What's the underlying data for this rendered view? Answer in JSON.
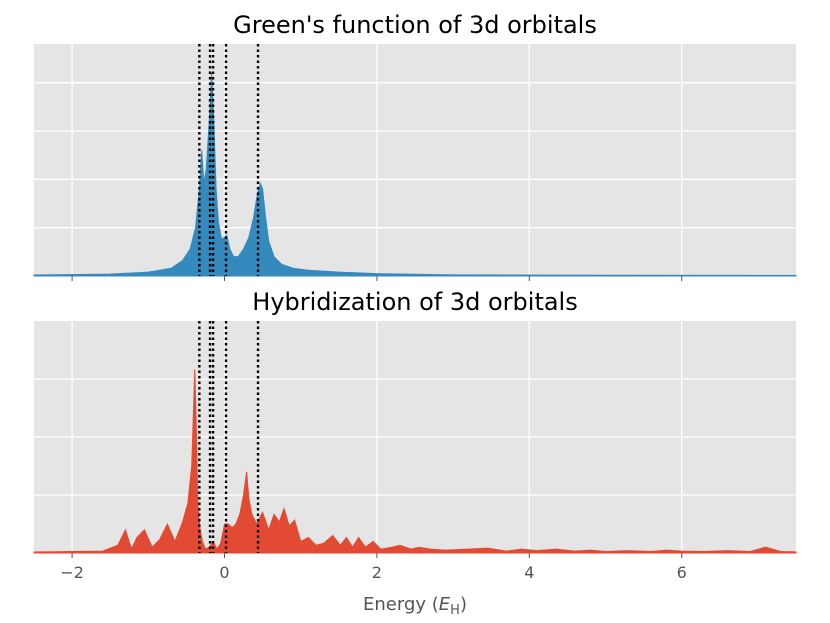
{
  "chart_data": [
    {
      "type": "area",
      "title": "Green's function of 3d orbitals",
      "xlabel": "",
      "ylabel": "",
      "xlim": [
        -2.5,
        7.5
      ],
      "ylim": [
        0,
        1.2
      ],
      "grid": true,
      "y_tick_labels_shown": false,
      "x_tick_labels_shown": false,
      "x_ticks": [
        -2,
        0,
        2,
        4,
        6
      ],
      "y_ticks": [
        0.25,
        0.5,
        0.75,
        1.0
      ],
      "color": "#348abd",
      "x": [
        -2.5,
        -1.5,
        -1.0,
        -0.7,
        -0.55,
        -0.45,
        -0.38,
        -0.33,
        -0.3,
        -0.27,
        -0.24,
        -0.2,
        -0.17,
        -0.14,
        -0.11,
        -0.08,
        -0.04,
        0.0,
        0.03,
        0.07,
        0.12,
        0.18,
        0.25,
        0.32,
        0.38,
        0.43,
        0.47,
        0.5,
        0.54,
        0.58,
        0.65,
        0.75,
        0.9,
        1.1,
        1.5,
        2.0,
        3.0,
        5.0,
        7.5
      ],
      "values": [
        0.005,
        0.01,
        0.02,
        0.04,
        0.08,
        0.14,
        0.25,
        0.45,
        0.65,
        0.48,
        0.55,
        0.8,
        1.05,
        0.8,
        0.45,
        0.28,
        0.19,
        0.2,
        0.21,
        0.14,
        0.1,
        0.1,
        0.14,
        0.2,
        0.3,
        0.42,
        0.48,
        0.45,
        0.3,
        0.18,
        0.1,
        0.06,
        0.04,
        0.03,
        0.02,
        0.012,
        0.006,
        0.004,
        0.003
      ],
      "vlines": [
        -0.33,
        -0.19,
        -0.15,
        0.02,
        0.44
      ]
    },
    {
      "type": "area",
      "title": "Hybridization of 3d orbitals",
      "xlabel": "Energy (E_H)",
      "ylabel": "",
      "xlim": [
        -2.5,
        7.5
      ],
      "ylim": [
        0,
        1.2
      ],
      "grid": true,
      "y_tick_labels_shown": false,
      "x_ticks": [
        -2,
        0,
        2,
        4,
        6
      ],
      "x_tick_labels": [
        "−2",
        "0",
        "2",
        "4",
        "6"
      ],
      "y_ticks": [
        0.3,
        0.6,
        0.9
      ],
      "color": "#e24a33",
      "x": [
        -2.5,
        -1.6,
        -1.4,
        -1.3,
        -1.22,
        -1.15,
        -1.05,
        -0.95,
        -0.85,
        -0.75,
        -0.65,
        -0.55,
        -0.48,
        -0.43,
        -0.39,
        -0.37,
        -0.35,
        -0.32,
        -0.29,
        -0.25,
        -0.2,
        -0.15,
        -0.1,
        -0.05,
        0.0,
        0.05,
        0.1,
        0.15,
        0.2,
        0.25,
        0.29,
        0.32,
        0.36,
        0.42,
        0.5,
        0.58,
        0.65,
        0.72,
        0.78,
        0.85,
        0.92,
        1.0,
        1.1,
        1.2,
        1.3,
        1.42,
        1.52,
        1.6,
        1.68,
        1.76,
        1.85,
        1.95,
        2.05,
        2.2,
        2.3,
        2.45,
        2.55,
        2.7,
        2.9,
        3.2,
        3.45,
        3.7,
        3.9,
        4.1,
        4.35,
        4.6,
        4.8,
        5.0,
        5.3,
        5.6,
        5.8,
        6.0,
        6.3,
        6.6,
        6.9,
        7.1,
        7.3,
        7.5
      ],
      "values": [
        0.005,
        0.01,
        0.04,
        0.12,
        0.02,
        0.08,
        0.12,
        0.03,
        0.07,
        0.15,
        0.06,
        0.16,
        0.26,
        0.45,
        0.95,
        0.65,
        0.25,
        0.12,
        0.06,
        0.02,
        0.03,
        0.06,
        0.02,
        0.05,
        0.15,
        0.15,
        0.13,
        0.15,
        0.2,
        0.3,
        0.42,
        0.28,
        0.2,
        0.15,
        0.21,
        0.12,
        0.2,
        0.16,
        0.23,
        0.14,
        0.17,
        0.06,
        0.08,
        0.04,
        0.05,
        0.09,
        0.04,
        0.08,
        0.03,
        0.08,
        0.03,
        0.06,
        0.02,
        0.03,
        0.04,
        0.02,
        0.03,
        0.02,
        0.015,
        0.02,
        0.025,
        0.01,
        0.02,
        0.012,
        0.02,
        0.01,
        0.015,
        0.008,
        0.012,
        0.008,
        0.015,
        0.01,
        0.008,
        0.012,
        0.008,
        0.03,
        0.008,
        0.006
      ],
      "vlines": [
        -0.33,
        -0.19,
        -0.15,
        0.02,
        0.44
      ]
    }
  ],
  "xlabel_text": "Energy (",
  "xlabel_var": "E",
  "xlabel_sub": "H",
  "xlabel_close": ")"
}
